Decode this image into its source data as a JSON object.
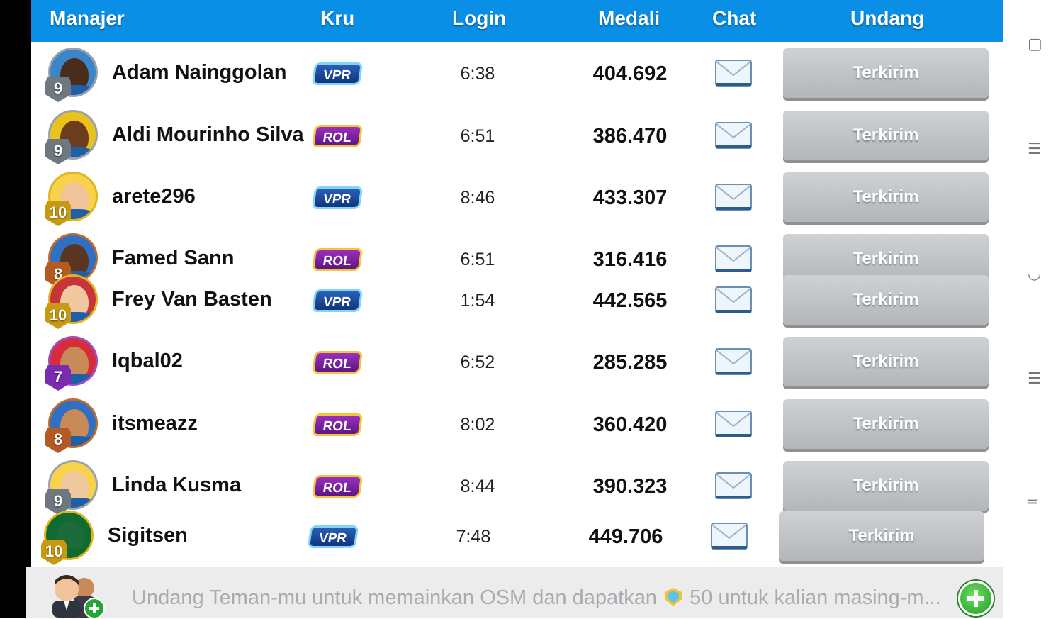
{
  "header": {
    "manajer": "Manajer",
    "kru": "Kru",
    "login": "Login",
    "medali": "Medali",
    "chat": "Chat",
    "undang": "Undang"
  },
  "rows": [
    {
      "name": "Adam Nainggolan",
      "level": "9",
      "crew": "VPR",
      "login": "6:38",
      "medals": "404.692",
      "invite": "Terkirim"
    },
    {
      "name": "Aldi Mourinho Silva",
      "level": "9",
      "crew": "ROL",
      "login": "6:51",
      "medals": "386.470",
      "invite": "Terkirim"
    },
    {
      "name": "arete296",
      "level": "10",
      "crew": "VPR",
      "login": "8:46",
      "medals": "433.307",
      "invite": "Terkirim"
    },
    {
      "name": "Famed Sann",
      "level": "8",
      "crew": "ROL",
      "login": "6:51",
      "medals": "316.416",
      "invite": "Terkirim"
    },
    {
      "name": "Frey Van Basten",
      "level": "10",
      "crew": "VPR",
      "login": "1:54",
      "medals": "442.565",
      "invite": "Terkirim"
    },
    {
      "name": "Iqbal02",
      "level": "7",
      "crew": "ROL",
      "login": "6:52",
      "medals": "285.285",
      "invite": "Terkirim"
    },
    {
      "name": "itsmeazz",
      "level": "8",
      "crew": "ROL",
      "login": "8:02",
      "medals": "360.420",
      "invite": "Terkirim"
    },
    {
      "name": "Linda Kusma",
      "level": "9",
      "crew": "ROL",
      "login": "8:44",
      "medals": "390.323",
      "invite": "Terkirim"
    },
    {
      "name": "Sigitsen",
      "level": "10",
      "crew": "VPR",
      "login": "7:48",
      "medals": "449.706",
      "invite": "Terkirim"
    }
  ],
  "footer": {
    "text_before": "Undang Teman-mu untuk memainkan OSM dan dapatkan",
    "text_after": "50 untuk kalian masing-m..."
  },
  "colors": {
    "header_bg": "#0a8fe6",
    "vpr_badge": "#1f4aa0",
    "rol_badge": "#7a1fa8",
    "invite_button": "#bfc2c5"
  }
}
